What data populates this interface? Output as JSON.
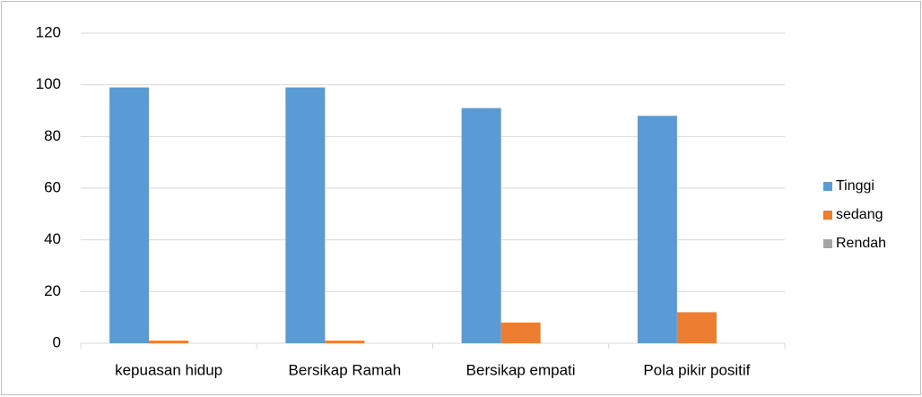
{
  "chart_data": {
    "type": "bar",
    "categories": [
      "kepuasan hidup",
      "Bersikap Ramah",
      "Bersikap empati",
      "Pola pikir positif"
    ],
    "series": [
      {
        "name": "Tinggi",
        "color": "#5b9bd5",
        "values": [
          99,
          99,
          91,
          88
        ]
      },
      {
        "name": "sedang",
        "color": "#ed7d31",
        "values": [
          1,
          1,
          8,
          12
        ]
      },
      {
        "name": "Rendah",
        "color": "#a5a5a5",
        "values": [
          0,
          0,
          0,
          0
        ]
      }
    ],
    "ylim": [
      0,
      120
    ],
    "yticks": [
      0,
      20,
      40,
      60,
      80,
      100,
      120
    ],
    "grid": true,
    "legend": "right"
  }
}
